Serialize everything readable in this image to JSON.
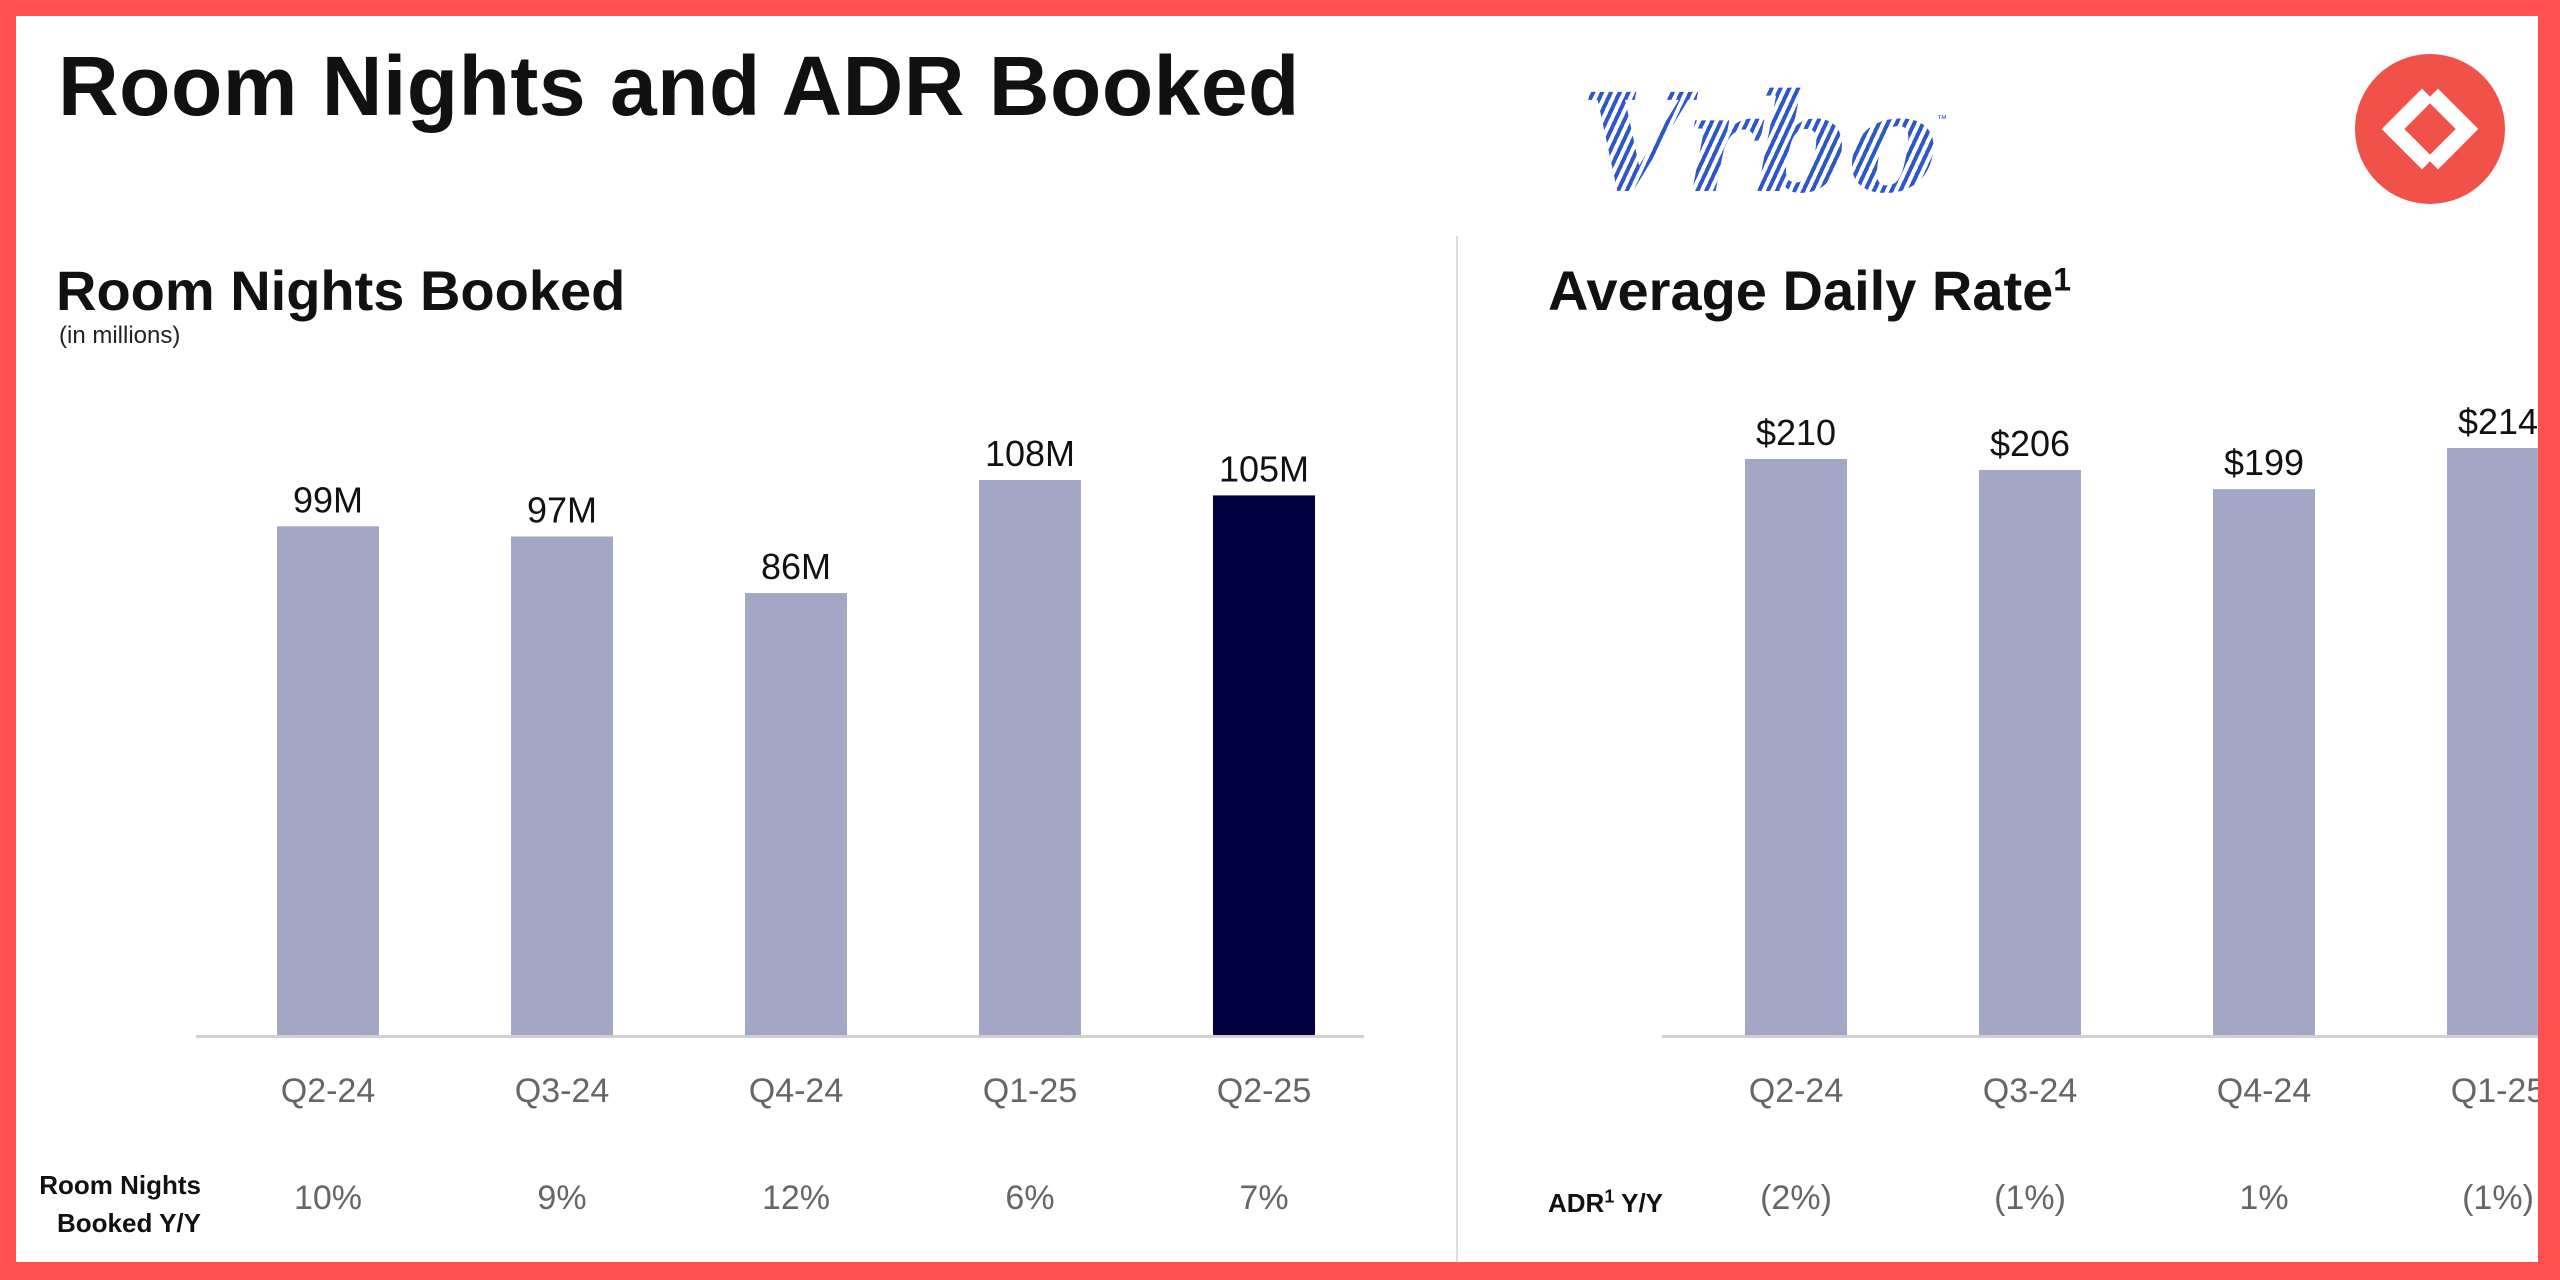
{
  "header": {
    "title": "Room Nights and ADR Booked",
    "logo_text": "Vrbo",
    "logo_tm": "™",
    "badge_icon": "diamond-chevrons-icon",
    "colors": {
      "frame": "#ff4f4f",
      "logo": "#2f57c8",
      "badge": "#f0524a"
    }
  },
  "chart_data": [
    {
      "type": "bar",
      "title": "Room Nights Booked",
      "subtitle": "(in millions)",
      "categories": [
        "Q2-24",
        "Q3-24",
        "Q4-24",
        "Q1-25",
        "Q2-25"
      ],
      "values": [
        99,
        97,
        86,
        108,
        105
      ],
      "data_labels": [
        "99M",
        "97M",
        "86M",
        "108M",
        "105M"
      ],
      "highlight_index": 4,
      "ylim": [
        0,
        108
      ],
      "grid": false,
      "colors": {
        "bar": "#a3a7c5",
        "highlight": "#02003f",
        "axis": "#d0d0d0"
      },
      "yy_label": "Room Nights Booked Y/Y",
      "yy_values": [
        "10%",
        "9%",
        "12%",
        "6%",
        "7%"
      ]
    },
    {
      "type": "bar",
      "title": "Average Daily Rate",
      "title_sup": "1",
      "categories": [
        "Q2-24",
        "Q3-24",
        "Q4-24",
        "Q1-25"
      ],
      "values": [
        210,
        206,
        199,
        214
      ],
      "data_labels": [
        "$210",
        "$206",
        "$199",
        "$214"
      ],
      "ylim": [
        0,
        214
      ],
      "grid": false,
      "colors": {
        "bar": "#a3a7c5",
        "axis": "#d0d0d0"
      },
      "yy_label": "ADR",
      "yy_label_sup": "1",
      "yy_label_suffix": " Y/Y",
      "yy_values": [
        "(2%)",
        "(1%)",
        "1%",
        "(1%)"
      ]
    }
  ]
}
